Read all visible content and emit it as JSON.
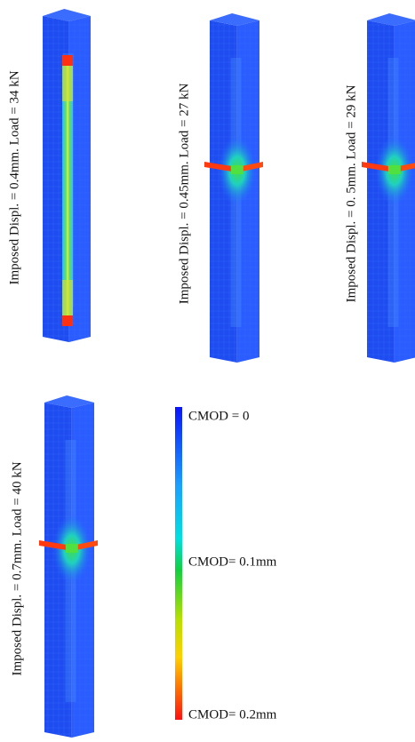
{
  "panels": [
    {
      "label": "Imposed Displ. = 0.4mm. Load = 34 kN"
    },
    {
      "label": "Imposed Displ. = 0.45mm. Load = 27 kN"
    },
    {
      "label": "Imposed Displ. = 0. 5mm. Load = 29 kN"
    },
    {
      "label": "Imposed Displ. = 0.7mm. Load = 40 kN"
    }
  ],
  "legend": {
    "labels": [
      "CMOD = 0",
      "CMOD= 0.1mm",
      "CMOD= 0.2mm"
    ]
  }
}
